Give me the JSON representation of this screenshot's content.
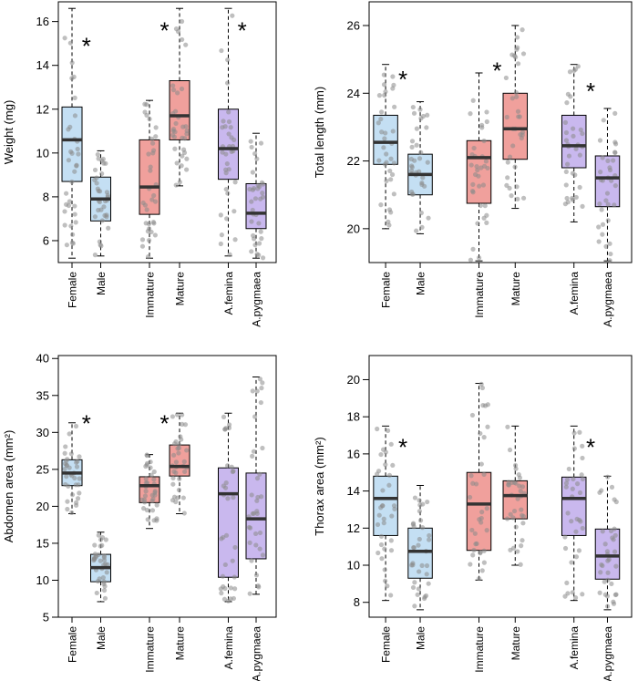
{
  "colors": {
    "sex": "#c4dff3",
    "maturity": "#f0a09c",
    "species": "#c9b8ee",
    "median": "#333333",
    "points": "#8a8a8a"
  },
  "chart_data": [
    {
      "type": "boxplot",
      "ylabel": "Weight (mg)",
      "ylim": [
        5,
        16.9
      ],
      "yticks": [
        6,
        8,
        10,
        12,
        14,
        16
      ],
      "groups": [
        {
          "label": "Female",
          "color_key": "sex",
          "min": 5.2,
          "q1": 8.7,
          "median": 10.6,
          "q3": 12.1,
          "max": 16.6
        },
        {
          "label": "Male",
          "color_key": "sex",
          "min": 5.3,
          "q1": 6.9,
          "median": 7.9,
          "q3": 8.9,
          "max": 10.1
        },
        {
          "label": "Immature",
          "color_key": "maturity",
          "min": 5.2,
          "q1": 7.2,
          "median": 8.45,
          "q3": 10.6,
          "max": 12.4
        },
        {
          "label": "Mature",
          "color_key": "maturity",
          "min": 8.5,
          "q1": 10.6,
          "median": 11.7,
          "q3": 13.3,
          "max": 16.6
        },
        {
          "label": "A.femina",
          "color_key": "species",
          "min": 5.3,
          "q1": 8.8,
          "median": 10.2,
          "q3": 12.0,
          "max": 16.6
        },
        {
          "label": "A.pygmaea",
          "color_key": "species",
          "min": 5.2,
          "q1": 6.55,
          "median": 7.25,
          "q3": 8.6,
          "max": 10.9
        }
      ],
      "annotations": [
        {
          "text": "*",
          "x_group": 0.5,
          "y": 15.1
        },
        {
          "text": "*",
          "x_group": 2.5,
          "y": 15.8
        },
        {
          "text": "*",
          "x_group": 4.5,
          "y": 15.8
        }
      ]
    },
    {
      "type": "boxplot",
      "ylabel": "Total length (mm)",
      "ylim": [
        19.0,
        26.7
      ],
      "yticks": [
        20,
        22,
        24,
        26
      ],
      "groups": [
        {
          "label": "Female",
          "color_key": "sex",
          "min": 20.0,
          "q1": 21.9,
          "median": 22.55,
          "q3": 23.35,
          "max": 24.85
        },
        {
          "label": "Male",
          "color_key": "sex",
          "min": 19.85,
          "q1": 21.0,
          "median": 21.6,
          "q3": 22.2,
          "max": 23.75
        },
        {
          "label": "Immature",
          "color_key": "maturity",
          "min": 19.05,
          "q1": 20.75,
          "median": 22.1,
          "q3": 22.6,
          "max": 24.6
        },
        {
          "label": "Mature",
          "color_key": "maturity",
          "min": 20.6,
          "q1": 22.05,
          "median": 22.95,
          "q3": 24.0,
          "max": 26.0
        },
        {
          "label": "A.femina",
          "color_key": "species",
          "min": 20.2,
          "q1": 21.8,
          "median": 22.45,
          "q3": 23.35,
          "max": 24.85
        },
        {
          "label": "A.pygmaea",
          "color_key": "species",
          "min": 19.05,
          "q1": 20.65,
          "median": 21.5,
          "q3": 22.15,
          "max": 23.55
        }
      ],
      "annotations": [
        {
          "text": "*",
          "x_group": 0.5,
          "y": 24.55
        },
        {
          "text": "*",
          "x_group": 2.5,
          "y": 24.8
        },
        {
          "text": "*",
          "x_group": 4.5,
          "y": 24.2
        }
      ]
    },
    {
      "type": "boxplot",
      "ylabel": "Abdomen area (mm²)",
      "ylim": [
        5,
        40.4
      ],
      "yticks": [
        5,
        10,
        15,
        20,
        25,
        30,
        35,
        40
      ],
      "groups": [
        {
          "label": "Female",
          "color_key": "sex",
          "min": 19.0,
          "q1": 22.8,
          "median": 24.5,
          "q3": 26.3,
          "max": 31.3
        },
        {
          "label": "Male",
          "color_key": "sex",
          "min": 7.1,
          "q1": 9.8,
          "median": 11.7,
          "q3": 13.5,
          "max": 16.5
        },
        {
          "label": "Immature",
          "color_key": "maturity",
          "min": 17.0,
          "q1": 20.5,
          "median": 22.8,
          "q3": 24.0,
          "max": 27.0
        },
        {
          "label": "Mature",
          "color_key": "maturity",
          "min": 19.0,
          "q1": 24.1,
          "median": 25.4,
          "q3": 28.3,
          "max": 32.6
        },
        {
          "label": "A.femina",
          "color_key": "species",
          "min": 7.1,
          "q1": 10.4,
          "median": 21.7,
          "q3": 25.2,
          "max": 32.6
        },
        {
          "label": "A.pygmaea",
          "color_key": "species",
          "min": 8.1,
          "q1": 12.9,
          "median": 18.3,
          "q3": 24.5,
          "max": 37.5
        }
      ],
      "annotations": [
        {
          "text": "*",
          "x_group": 0.5,
          "y": 31.8
        },
        {
          "text": "*",
          "x_group": 2.5,
          "y": 31.8
        }
      ]
    },
    {
      "type": "boxplot",
      "ylabel": "Thorax area (mm²)",
      "ylim": [
        7.2,
        21.3
      ],
      "yticks": [
        8,
        10,
        12,
        14,
        16,
        18,
        20
      ],
      "groups": [
        {
          "label": "Female",
          "color_key": "sex",
          "min": 8.1,
          "q1": 11.6,
          "median": 13.6,
          "q3": 14.8,
          "max": 17.5
        },
        {
          "label": "Male",
          "color_key": "sex",
          "min": 7.6,
          "q1": 9.3,
          "median": 10.75,
          "q3": 12.0,
          "max": 14.3
        },
        {
          "label": "Immature",
          "color_key": "maturity",
          "min": 9.2,
          "q1": 10.8,
          "median": 13.3,
          "q3": 15.0,
          "max": 19.8
        },
        {
          "label": "Mature",
          "color_key": "maturity",
          "min": 10.0,
          "q1": 12.5,
          "median": 13.75,
          "q3": 14.55,
          "max": 17.5
        },
        {
          "label": "A.femina",
          "color_key": "species",
          "min": 8.1,
          "q1": 11.6,
          "median": 13.6,
          "q3": 14.75,
          "max": 17.5
        },
        {
          "label": "A.pygmaea",
          "color_key": "species",
          "min": 7.6,
          "q1": 9.25,
          "median": 10.5,
          "q3": 11.95,
          "max": 14.8
        }
      ],
      "annotations": [
        {
          "text": "*",
          "x_group": 0.5,
          "y": 16.6
        },
        {
          "text": "*",
          "x_group": 4.5,
          "y": 16.6
        }
      ]
    }
  ]
}
